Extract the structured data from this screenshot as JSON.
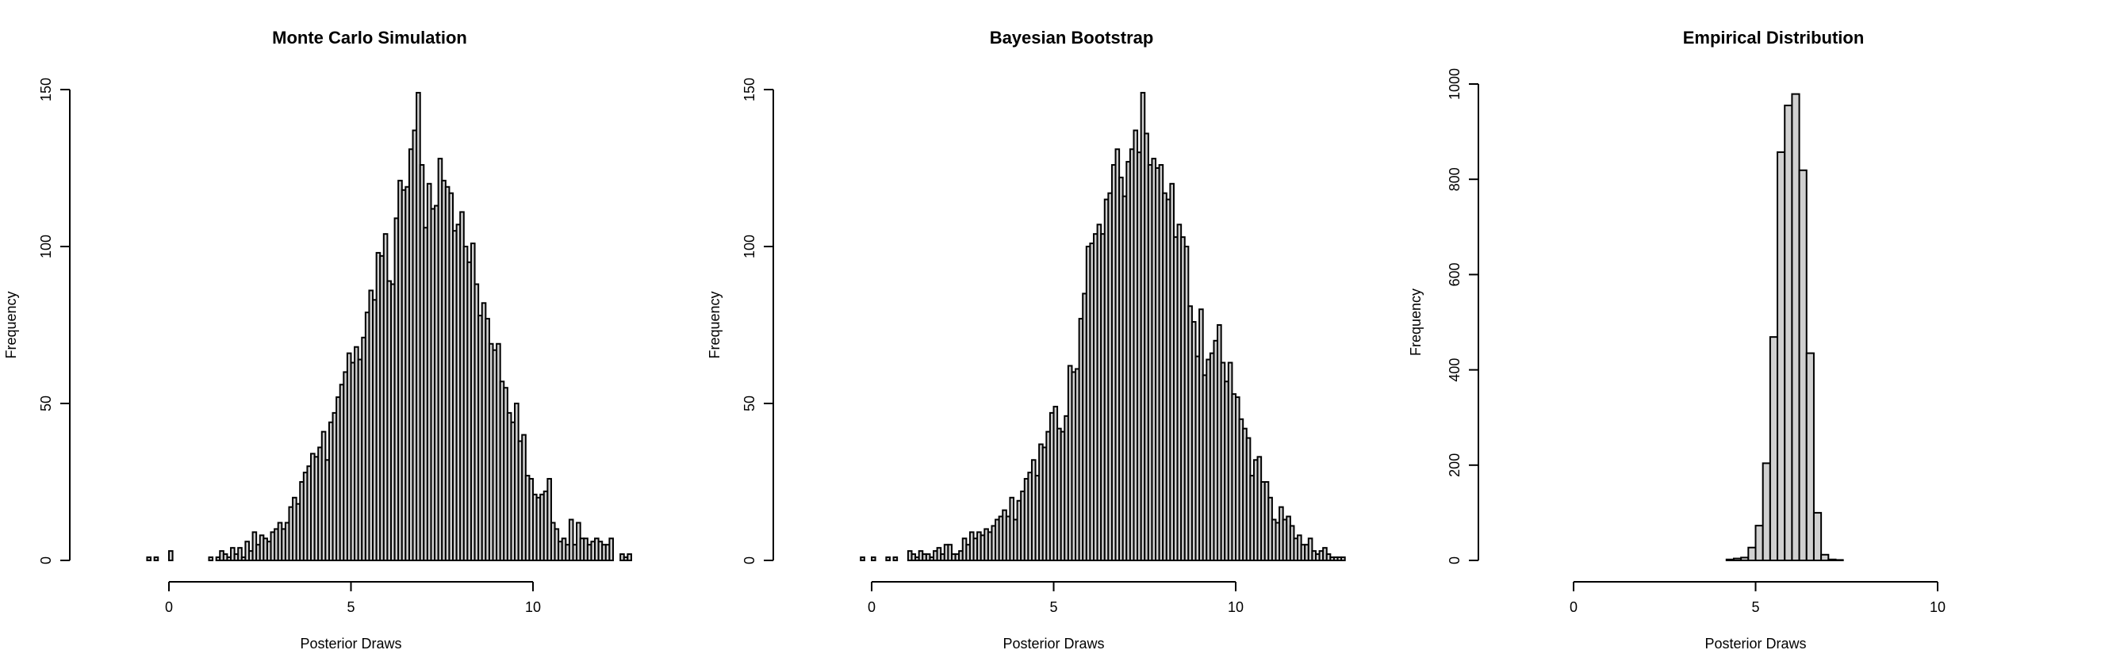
{
  "chart_data": [
    {
      "type": "bar",
      "title": "Monte Carlo Simulation",
      "xlabel": "Posterior Draws",
      "ylabel": "Frequency",
      "xlim": [
        -0.8,
        12.9
      ],
      "ylim": [
        0,
        150
      ],
      "x_ticks": [
        0,
        5,
        10
      ],
      "y_ticks": [
        0,
        50,
        100,
        150
      ],
      "bin_start": -0.6,
      "bin_width": 0.1,
      "values": [
        1,
        0,
        1,
        0,
        0,
        0,
        3,
        0,
        0,
        0,
        0,
        0,
        0,
        0,
        0,
        0,
        0,
        1,
        0,
        1,
        3,
        2,
        1,
        4,
        2,
        4,
        1,
        6,
        3,
        9,
        5,
        8,
        7,
        6,
        9,
        10,
        12,
        10,
        12,
        17,
        20,
        18,
        25,
        28,
        30,
        34,
        33,
        36,
        41,
        32,
        44,
        47,
        52,
        56,
        60,
        66,
        63,
        68,
        64,
        71,
        79,
        86,
        83,
        98,
        97,
        104,
        89,
        88,
        109,
        121,
        118,
        119,
        131,
        137,
        149,
        126,
        106,
        120,
        112,
        113,
        128,
        121,
        119,
        117,
        105,
        107,
        111,
        100,
        95,
        101,
        88,
        78,
        82,
        77,
        69,
        67,
        69,
        57,
        55,
        47,
        44,
        50,
        38,
        40,
        27,
        26,
        21,
        20,
        21,
        22,
        26,
        12,
        10,
        6,
        7,
        5,
        13,
        5,
        12,
        7,
        7,
        5,
        6,
        7,
        6,
        5,
        5,
        7,
        0,
        0,
        2,
        1,
        2
      ]
    },
    {
      "type": "bar",
      "title": "Bayesian Bootstrap",
      "xlabel": "Posterior Draws",
      "ylabel": "Frequency",
      "xlim": [
        -0.3,
        11.4
      ],
      "ylim": [
        0,
        150
      ],
      "x_ticks": [
        0,
        5,
        10
      ],
      "y_ticks": [
        0,
        50,
        100,
        150
      ],
      "bin_start": -0.3,
      "bin_width": 0.1,
      "values": [
        1,
        0,
        0,
        1,
        0,
        0,
        0,
        1,
        0,
        1,
        0,
        0,
        0,
        3,
        2,
        1,
        3,
        2,
        2,
        1,
        3,
        4,
        2,
        5,
        5,
        2,
        2,
        3,
        7,
        5,
        9,
        7,
        9,
        8,
        10,
        9,
        11,
        13,
        14,
        16,
        14,
        20,
        13,
        19,
        22,
        26,
        28,
        32,
        27,
        37,
        36,
        41,
        47,
        49,
        42,
        41,
        46,
        62,
        60,
        61,
        77,
        85,
        100,
        101,
        104,
        107,
        104,
        115,
        117,
        126,
        131,
        122,
        116,
        127,
        131,
        137,
        130,
        149,
        136,
        126,
        128,
        125,
        126,
        117,
        115,
        120,
        103,
        107,
        103,
        100,
        81,
        76,
        65,
        80,
        59,
        64,
        66,
        70,
        75,
        63,
        57,
        63,
        53,
        52,
        45,
        42,
        39,
        27,
        32,
        33,
        25,
        25,
        20,
        13,
        12,
        17,
        13,
        14,
        11,
        7,
        8,
        5,
        5,
        7,
        3,
        2,
        3,
        4,
        2,
        1,
        1,
        1,
        1
      ]
    },
    {
      "type": "bar",
      "title": "Empirical Distribution",
      "xlabel": "Posterior Draws",
      "ylabel": "Frequency",
      "xlim": [
        0,
        10
      ],
      "ylim": [
        0,
        1000
      ],
      "x_ticks": [
        0,
        5,
        10
      ],
      "y_ticks": [
        0,
        200,
        400,
        600,
        800,
        1000
      ],
      "bin_start": 4.2,
      "bin_width": 0.2,
      "values": [
        2,
        4,
        6,
        27,
        73,
        204,
        469,
        857,
        955,
        979,
        819,
        435,
        100,
        12,
        2,
        1
      ]
    }
  ]
}
